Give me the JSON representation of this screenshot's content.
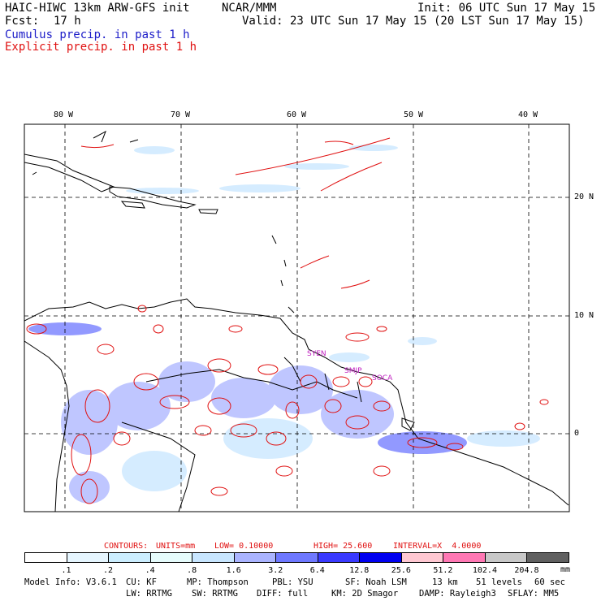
{
  "header": {
    "model_title": "HAIC-HIWC 13km ARW-GFS init",
    "org": "NCAR/MMM",
    "init": "Init: 06 UTC Sun 17 May 15",
    "fcst_label": "Fcst:",
    "fcst_value": "17 h",
    "valid": "Valid: 23 UTC Sun 17 May 15 (20 LST Sun 17 May 15)",
    "field_cumulus": "Cumulus precip. in past 1 h",
    "field_explicit": "Explicit precip. in past 1 h"
  },
  "map": {
    "lon_labels": [
      "80 W",
      "70 W",
      "60 W",
      "50 W",
      "40 W"
    ],
    "lat_labels": [
      "20 N",
      "10 N",
      "0"
    ],
    "cities": [
      "SYEN",
      "SMJP",
      "SOCA"
    ]
  },
  "contours_line": {
    "contours": "CONTOURS:",
    "units": "UNITS=mm",
    "low": "LOW= 0.10000",
    "high": "HIGH= 25.600",
    "interval": "INTERVAL=X  4.0000"
  },
  "colorbar": {
    "labels": [
      ".1",
      ".2",
      ".4",
      ".8",
      "1.6",
      "3.2",
      "6.4",
      "12.8",
      "25.6",
      "51.2",
      "102.4",
      "204.8"
    ],
    "unit": "mm",
    "colors": [
      "#ffffff",
      "#e6f6ff",
      "#cceeff",
      "#e6fcfc",
      "#c8e6ff",
      "#aab4ff",
      "#6e78ff",
      "#3a3aff",
      "#0000f0",
      "#ffc8d2",
      "#ff78b4",
      "#c8c8c8",
      "#606060",
      "#282828",
      "#d7a0ff"
    ]
  },
  "footer": {
    "model_info": "Model Info: V3.6.1",
    "cu": "CU: KF",
    "mp": "MP: Thompson",
    "pbl": "PBL: YSU",
    "sf": "SF: Noah LSM",
    "res": "13 km",
    "levels": "51 levels",
    "dt": "60 sec",
    "lw": "LW: RRTMG",
    "sw": "SW: RRTMG",
    "diff": "DIFF: full",
    "km": "KM: 2D Smagor",
    "damp": "DAMP: Rayleigh3",
    "sflay": "SFLAY: MM5"
  }
}
